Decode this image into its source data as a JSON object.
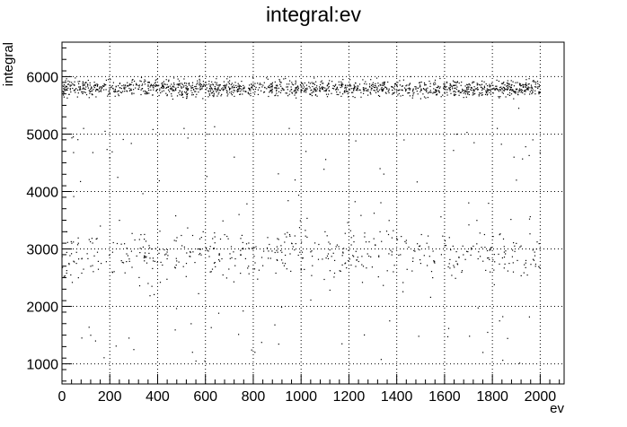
{
  "chart_data": {
    "type": "scatter",
    "title": "integral:ev",
    "xlabel": "ev",
    "ylabel": "integral",
    "xlim": [
      0,
      2100
    ],
    "ylim": [
      650,
      6600
    ],
    "x_ticks": [
      0,
      200,
      400,
      600,
      800,
      1000,
      1200,
      1400,
      1600,
      1800,
      2000
    ],
    "y_ticks": [
      1000,
      2000,
      3000,
      4000,
      5000,
      6000
    ],
    "grid": true,
    "point_count": 2000,
    "bands": [
      {
        "name": "upper",
        "x_range": [
          0,
          2000
        ],
        "y_center": 5800,
        "y_spread": 120,
        "fraction": 0.72
      },
      {
        "name": "middle",
        "x_range": [
          0,
          2000
        ],
        "y_center": 2900,
        "y_spread": 350,
        "fraction": 0.22
      },
      {
        "name": "sparse",
        "x_range": [
          0,
          2000
        ],
        "y_range": [
          1000,
          5300
        ],
        "fraction": 0.06
      }
    ],
    "sample_points": [
      [
        10,
        5780
      ],
      [
        25,
        5800
      ],
      [
        50,
        5760
      ],
      [
        75,
        5790
      ],
      [
        100,
        5820
      ],
      [
        150,
        5770
      ],
      [
        200,
        5850
      ],
      [
        260,
        5790
      ],
      [
        310,
        5880
      ],
      [
        380,
        5820
      ],
      [
        420,
        5860
      ],
      [
        500,
        5800
      ],
      [
        560,
        5830
      ],
      [
        600,
        5900
      ],
      [
        650,
        5850
      ],
      [
        700,
        5880
      ],
      [
        780,
        5800
      ],
      [
        820,
        5770
      ],
      [
        900,
        5850
      ],
      [
        960,
        5780
      ],
      [
        1000,
        5820
      ],
      [
        1080,
        5860
      ],
      [
        1150,
        5800
      ],
      [
        1200,
        5840
      ],
      [
        1280,
        5780
      ],
      [
        1350,
        5820
      ],
      [
        1400,
        5860
      ],
      [
        1480,
        5790
      ],
      [
        1540,
        5830
      ],
      [
        1600,
        5870
      ],
      [
        1640,
        5910
      ],
      [
        1700,
        5820
      ],
      [
        1760,
        5790
      ],
      [
        1820,
        5780
      ],
      [
        1880,
        5700
      ],
      [
        1910,
        5450
      ],
      [
        1950,
        5820
      ],
      [
        1990,
        5880
      ],
      [
        20,
        3300
      ],
      [
        60,
        2750
      ],
      [
        120,
        2700
      ],
      [
        160,
        3400
      ],
      [
        210,
        2600
      ],
      [
        240,
        3500
      ],
      [
        330,
        3250
      ],
      [
        360,
        2400
      ],
      [
        430,
        2900
      ],
      [
        470,
        3150
      ],
      [
        520,
        2750
      ],
      [
        590,
        3300
      ],
      [
        620,
        2600
      ],
      [
        680,
        3250
      ],
      [
        740,
        3600
      ],
      [
        780,
        2700
      ],
      [
        860,
        3200
      ],
      [
        900,
        2800
      ],
      [
        960,
        3100
      ],
      [
        1000,
        2650
      ],
      [
        1040,
        2950
      ],
      [
        1100,
        3300
      ],
      [
        1140,
        2800
      ],
      [
        1210,
        3200
      ],
      [
        1260,
        2700
      ],
      [
        1330,
        3300
      ],
      [
        1380,
        2950
      ],
      [
        1440,
        3150
      ],
      [
        1500,
        2750
      ],
      [
        1550,
        2500
      ],
      [
        1620,
        3200
      ],
      [
        1660,
        2850
      ],
      [
        1720,
        3050
      ],
      [
        1790,
        2600
      ],
      [
        1830,
        3250
      ],
      [
        1870,
        2750
      ],
      [
        1940,
        2800
      ],
      [
        1980,
        2700
      ],
      [
        120,
        1500
      ],
      [
        140,
        1400
      ],
      [
        280,
        1450
      ],
      [
        300,
        1250
      ],
      [
        540,
        1700
      ],
      [
        560,
        1050
      ],
      [
        1370,
        1750
      ],
      [
        1760,
        1200
      ],
      [
        1780,
        1550
      ],
      [
        1830,
        1750
      ],
      [
        90,
        5100
      ],
      [
        180,
        5050
      ],
      [
        380,
        5080
      ],
      [
        510,
        5100
      ],
      [
        610,
        5000
      ],
      [
        720,
        4600
      ],
      [
        950,
        5100
      ],
      [
        1020,
        4700
      ],
      [
        1200,
        4900
      ],
      [
        1330,
        4400
      ],
      [
        1430,
        4900
      ],
      [
        1650,
        5000
      ],
      [
        1890,
        4600
      ],
      [
        1900,
        4200
      ],
      [
        1820,
        5100
      ]
    ]
  }
}
